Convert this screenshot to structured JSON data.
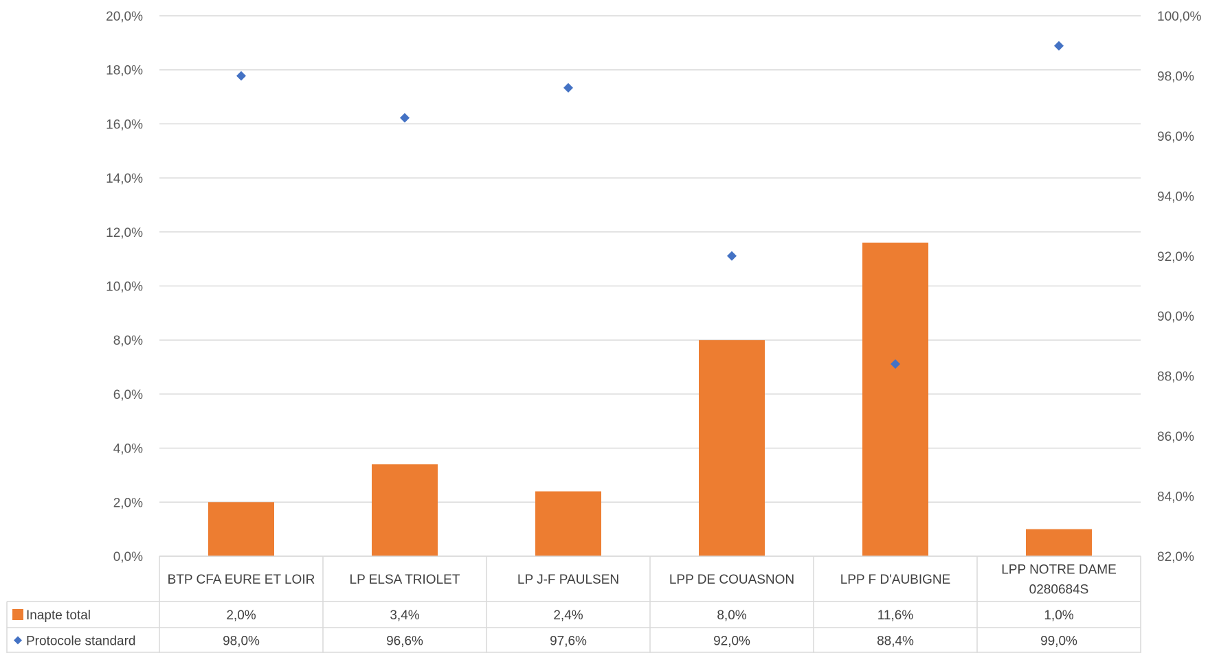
{
  "chart_data": {
    "type": "bar",
    "categories": [
      [
        "BTP CFA EURE ET LOIR"
      ],
      [
        "LP ELSA TRIOLET"
      ],
      [
        "LP J-F PAULSEN"
      ],
      [
        "LPP DE COUASNON"
      ],
      [
        "LPP F D'AUBIGNE"
      ],
      [
        "LPP NOTRE DAME",
        "0280684S"
      ]
    ],
    "series": [
      {
        "name": "Inapte total",
        "type": "bar",
        "axis": "left",
        "color": "#ED7D31",
        "values": [
          2.0,
          3.4,
          2.4,
          8.0,
          11.6,
          1.0
        ],
        "labels": [
          "2,0%",
          "3,4%",
          "2,4%",
          "8,0%",
          "11,6%",
          "1,0%"
        ]
      },
      {
        "name": "Protocole standard",
        "type": "scatter",
        "marker": "diamond",
        "axis": "right",
        "color": "#4472C4",
        "values": [
          98.0,
          96.6,
          97.6,
          92.0,
          88.4,
          99.0
        ],
        "labels": [
          "98,0%",
          "96,6%",
          "97,6%",
          "92,0%",
          "88,4%",
          "99,0%"
        ]
      }
    ],
    "y_left": {
      "range": [
        0,
        20
      ],
      "ticks": [
        0,
        2,
        4,
        6,
        8,
        10,
        12,
        14,
        16,
        18,
        20
      ],
      "tick_labels": [
        "0,0%",
        "2,0%",
        "4,0%",
        "6,0%",
        "8,0%",
        "10,0%",
        "12,0%",
        "14,0%",
        "16,0%",
        "18,0%",
        "20,0%"
      ]
    },
    "y_right": {
      "range": [
        82,
        100
      ],
      "ticks": [
        82,
        84,
        86,
        88,
        90,
        92,
        94,
        96,
        98,
        100
      ],
      "tick_labels": [
        "82,0%",
        "84,0%",
        "86,0%",
        "88,0%",
        "90,0%",
        "92,0%",
        "94,0%",
        "96,0%",
        "98,0%",
        "100,0%"
      ]
    },
    "grid": true,
    "legend": "data-table",
    "colors": {
      "grid": "#D9D9D9",
      "text": "#404040"
    }
  }
}
